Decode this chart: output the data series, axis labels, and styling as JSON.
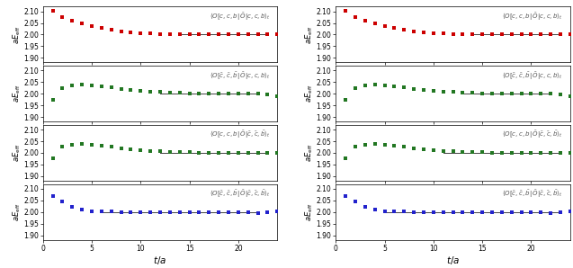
{
  "xlim": [
    0,
    24
  ],
  "ylim": [
    1.88,
    2.12
  ],
  "yticks": [
    1.9,
    1.95,
    2.0,
    2.05,
    2.1
  ],
  "xticks": [
    0,
    5,
    10,
    15,
    20
  ],
  "fit_line_y": 2.0,
  "colors": {
    "row0": "#cc0000",
    "row1": "#227722",
    "row2": "#227722",
    "row3": "#2222cc"
  },
  "labels_left": [
    "$\\langle O[c,c,b|\\,\\bar{O}|c,c,b\\rangle_t$",
    "$\\langle O[\\bar{c},\\bar{c},\\bar{b}|\\,\\bar{O}|c,c,b\\rangle_t$",
    "$\\langle O[c,c,b|\\,\\bar{O}|\\bar{c},\\bar{c},\\bar{b}\\rangle_t$",
    "$\\langle O[\\bar{c},\\bar{c},\\bar{b}|\\,\\bar{O}|\\bar{c},\\bar{c},\\bar{b}\\rangle_t$"
  ],
  "labels_right": [
    "$\\langle O[c,c,b|\\,\\bar{O}|c,c,b\\rangle_t$",
    "$\\langle O[\\bar{c},\\bar{c},\\bar{b}|\\,\\bar{O}|c,c,b\\rangle_t$",
    "$\\langle O[c,c,b|\\,\\bar{O}|\\bar{c},\\bar{c},\\bar{b}\\rangle_t$",
    "$\\langle O[\\bar{c},\\bar{c},\\bar{b}|\\,\\bar{O}|\\bar{c},\\bar{c},\\bar{b}\\rangle_t$"
  ],
  "data_left": {
    "row0": {
      "x": [
        1,
        2,
        3,
        4,
        5,
        6,
        7,
        8,
        9,
        10,
        11,
        12,
        13,
        14,
        15,
        16,
        17,
        18,
        19,
        20,
        21,
        22,
        23,
        24
      ],
      "y": [
        2.103,
        2.077,
        2.06,
        2.048,
        2.037,
        2.027,
        2.02,
        2.015,
        2.01,
        2.007,
        2.005,
        2.003,
        2.002,
        2.001,
        2.001,
        2.0,
        2.0,
        2.0,
        2.0,
        2.0,
        2.0,
        2.0,
        2.0,
        2.0
      ],
      "fit_start": 14,
      "fit_end": 23
    },
    "row1": {
      "x": [
        1,
        2,
        3,
        4,
        5,
        6,
        7,
        8,
        9,
        10,
        11,
        12,
        13,
        14,
        15,
        16,
        17,
        18,
        19,
        20,
        21,
        22,
        23,
        24
      ],
      "y": [
        1.975,
        2.025,
        2.035,
        2.04,
        2.037,
        2.032,
        2.028,
        2.022,
        2.018,
        2.013,
        2.01,
        2.007,
        2.005,
        2.003,
        2.002,
        2.001,
        2.001,
        2.0,
        2.0,
        2.0,
        2.0,
        2.0,
        1.997,
        1.99
      ],
      "fit_start": 12,
      "fit_end": 22
    },
    "row2": {
      "x": [
        1,
        2,
        3,
        4,
        5,
        6,
        7,
        8,
        9,
        10,
        11,
        12,
        13,
        14,
        15,
        16,
        17,
        18,
        19,
        20,
        21,
        22,
        23,
        24
      ],
      "y": [
        1.975,
        2.025,
        2.035,
        2.038,
        2.035,
        2.03,
        2.025,
        2.02,
        2.016,
        2.012,
        2.009,
        2.007,
        2.005,
        2.003,
        2.002,
        2.001,
        2.001,
        2.0,
        2.0,
        2.0,
        2.0,
        2.0,
        1.999,
        2.001
      ],
      "fit_start": 12,
      "fit_end": 23
    },
    "row3": {
      "x": [
        1,
        2,
        3,
        4,
        5,
        6,
        7,
        8,
        9,
        10,
        11,
        12,
        13,
        14,
        15,
        16,
        17,
        18,
        19,
        20,
        21,
        22,
        23,
        24
      ],
      "y": [
        2.07,
        2.047,
        2.022,
        2.01,
        2.003,
        2.001,
        2.001,
        2.0,
        2.0,
        2.0,
        2.0,
        2.0,
        2.0,
        2.0,
        2.0,
        2.0,
        2.0,
        2.0,
        2.0,
        2.0,
        1.998,
        1.996,
        2.0,
        2.001
      ],
      "fit_start": 6,
      "fit_end": 22
    }
  },
  "data_right": {
    "row0": {
      "x": [
        1,
        2,
        3,
        4,
        5,
        6,
        7,
        8,
        9,
        10,
        11,
        12,
        13,
        14,
        15,
        16,
        17,
        18,
        19,
        20,
        21,
        22,
        23,
        24
      ],
      "y": [
        2.103,
        2.077,
        2.06,
        2.048,
        2.037,
        2.027,
        2.02,
        2.015,
        2.01,
        2.007,
        2.005,
        2.003,
        2.002,
        2.001,
        2.001,
        2.0,
        2.0,
        2.0,
        2.0,
        2.0,
        2.0,
        2.0,
        2.0,
        2.0
      ],
      "fit_start": 14,
      "fit_end": 23
    },
    "row1": {
      "x": [
        1,
        2,
        3,
        4,
        5,
        6,
        7,
        8,
        9,
        10,
        11,
        12,
        13,
        14,
        15,
        16,
        17,
        18,
        19,
        20,
        21,
        22,
        23,
        24
      ],
      "y": [
        1.975,
        2.025,
        2.035,
        2.04,
        2.037,
        2.032,
        2.028,
        2.022,
        2.018,
        2.013,
        2.01,
        2.007,
        2.005,
        2.003,
        2.002,
        2.001,
        2.001,
        2.0,
        2.0,
        2.0,
        2.0,
        2.0,
        1.997,
        1.99
      ],
      "fit_start": 13,
      "fit_end": 22
    },
    "row2": {
      "x": [
        1,
        2,
        3,
        4,
        5,
        6,
        7,
        8,
        9,
        10,
        11,
        12,
        13,
        14,
        15,
        16,
        17,
        18,
        19,
        20,
        21,
        22,
        23,
        24
      ],
      "y": [
        1.975,
        2.025,
        2.035,
        2.038,
        2.035,
        2.03,
        2.025,
        2.02,
        2.016,
        2.012,
        2.009,
        2.007,
        2.005,
        2.003,
        2.002,
        2.001,
        2.001,
        2.0,
        2.0,
        2.0,
        2.0,
        2.0,
        1.999,
        2.001
      ],
      "fit_start": 11,
      "fit_end": 23
    },
    "row3": {
      "x": [
        1,
        2,
        3,
        4,
        5,
        6,
        7,
        8,
        9,
        10,
        11,
        12,
        13,
        14,
        15,
        16,
        17,
        18,
        19,
        20,
        21,
        22,
        23,
        24
      ],
      "y": [
        2.07,
        2.047,
        2.022,
        2.01,
        2.003,
        2.001,
        2.001,
        2.0,
        2.0,
        2.0,
        2.0,
        2.0,
        2.0,
        2.0,
        2.0,
        2.0,
        2.0,
        2.0,
        2.0,
        2.0,
        1.998,
        1.996,
        2.0,
        2.001
      ],
      "fit_start": 5,
      "fit_end": 23
    }
  },
  "marker_size": 2.2,
  "fit_line_color": "#444444",
  "background_color": "#ffffff",
  "tick_fontsize": 5.5,
  "ylabel_fontsize": 6.0,
  "xlabel_fontsize": 7.5,
  "annotation_fontsize": 5.0
}
